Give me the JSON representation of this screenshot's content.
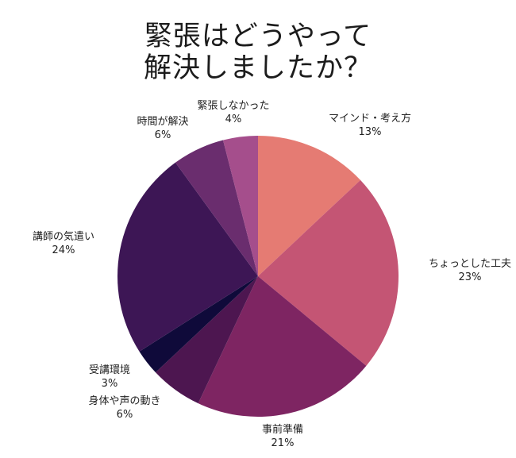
{
  "chart_data": {
    "type": "pie",
    "title": [
      "緊張はどうやって",
      "解決しましたか？"
    ],
    "slices": [
      {
        "label": "マインド・考え方",
        "value": 13,
        "display": "13%",
        "color": "#e57b73"
      },
      {
        "label": "ちょっとした工夫",
        "value": 23,
        "display": "23%",
        "color": "#c45574"
      },
      {
        "label": "事前準備",
        "value": 21,
        "display": "21%",
        "color": "#7e2562"
      },
      {
        "label": "身体や声の動き",
        "value": 6,
        "display": "6%",
        "color": "#4d1650"
      },
      {
        "label": "受講環境",
        "value": 3,
        "display": "3%",
        "color": "#0f0a3a"
      },
      {
        "label": "講師の気遣い",
        "value": 24,
        "display": "24%",
        "color": "#3d1655"
      },
      {
        "label": "時間が解決",
        "value": 6,
        "display": "6%",
        "color": "#6a2d6e"
      },
      {
        "label": "緊張しなかった",
        "value": 4,
        "display": "4%",
        "color": "#a54e8c"
      }
    ]
  }
}
